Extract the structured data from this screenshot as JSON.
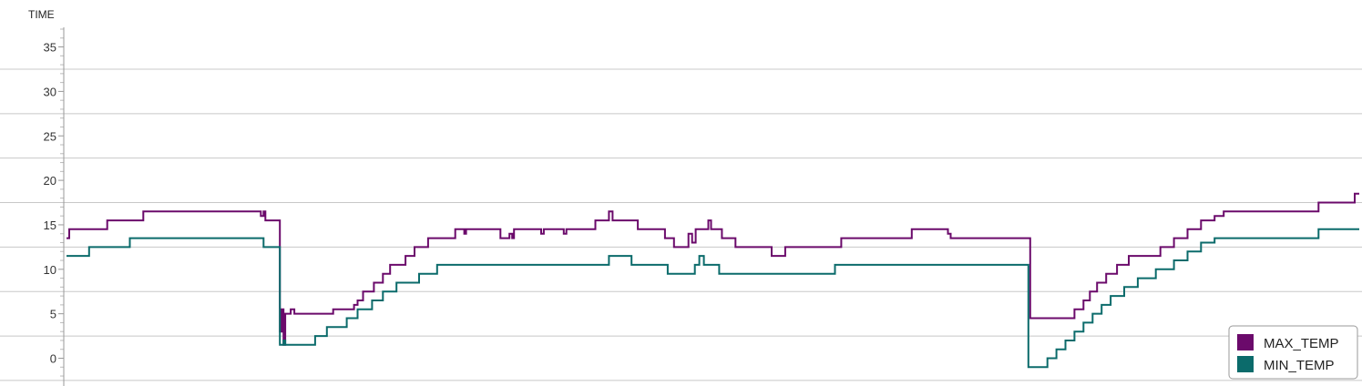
{
  "chart_data": {
    "type": "line",
    "step": true,
    "ylabel": "TIME",
    "ylim": [
      -2,
      37
    ],
    "yticks": [
      0,
      5,
      10,
      15,
      20,
      25,
      30,
      35
    ],
    "grid": true,
    "legend_position": "bottom-right",
    "x_domain": [
      0,
      1430
    ],
    "series": [
      {
        "name": "MAX_TEMP",
        "color": "#6b0a6b",
        "points": [
          [
            0,
            13.5
          ],
          [
            3,
            14.5
          ],
          [
            45,
            15.5
          ],
          [
            85,
            16.5
          ],
          [
            215,
            16
          ],
          [
            218,
            16.5
          ],
          [
            220,
            15.5
          ],
          [
            233,
            15.5
          ],
          [
            236,
            3
          ],
          [
            238,
            5.5
          ],
          [
            240,
            1.5
          ],
          [
            242,
            5
          ],
          [
            248,
            5.5
          ],
          [
            252,
            5
          ],
          [
            295,
            5.5
          ],
          [
            318,
            6
          ],
          [
            322,
            6.5
          ],
          [
            328,
            7.5
          ],
          [
            340,
            8.5
          ],
          [
            350,
            9.5
          ],
          [
            358,
            10.5
          ],
          [
            375,
            11.5
          ],
          [
            385,
            12.5
          ],
          [
            400,
            13.5
          ],
          [
            430,
            14.5
          ],
          [
            440,
            14
          ],
          [
            442,
            14.5
          ],
          [
            480,
            13.5
          ],
          [
            490,
            14
          ],
          [
            493,
            13.5
          ],
          [
            495,
            14.5
          ],
          [
            525,
            14
          ],
          [
            528,
            14.5
          ],
          [
            550,
            14
          ],
          [
            553,
            14.5
          ],
          [
            585,
            15.5
          ],
          [
            600,
            16.5
          ],
          [
            604,
            15.5
          ],
          [
            632,
            14.5
          ],
          [
            662,
            13.5
          ],
          [
            672,
            12.5
          ],
          [
            688,
            14
          ],
          [
            692,
            13
          ],
          [
            696,
            14.5
          ],
          [
            710,
            15.5
          ],
          [
            713,
            14.5
          ],
          [
            725,
            13.5
          ],
          [
            740,
            12.5
          ],
          [
            780,
            11.5
          ],
          [
            795,
            12.5
          ],
          [
            857,
            13.5
          ],
          [
            935,
            14.5
          ],
          [
            975,
            14
          ],
          [
            978,
            13.5
          ],
          [
            1064,
            13.5
          ],
          [
            1066,
            4.5
          ],
          [
            1115,
            5.5
          ],
          [
            1125,
            6.5
          ],
          [
            1132,
            7.5
          ],
          [
            1140,
            8.5
          ],
          [
            1150,
            9.5
          ],
          [
            1162,
            10.5
          ],
          [
            1175,
            11.5
          ],
          [
            1210,
            12.5
          ],
          [
            1225,
            13.5
          ],
          [
            1240,
            14.5
          ],
          [
            1255,
            15.5
          ],
          [
            1270,
            16
          ],
          [
            1280,
            16.5
          ],
          [
            1285,
            16.5
          ],
          [
            1300,
            16.5
          ],
          [
            1330,
            16.5
          ],
          [
            1340,
            16.5
          ],
          [
            1385,
            17.5
          ],
          [
            1415,
            17.5
          ],
          [
            1425,
            18.5
          ],
          [
            1430,
            18.5
          ]
        ]
      },
      {
        "name": "MIN_TEMP",
        "color": "#0b6b6b",
        "points": [
          [
            0,
            11.5
          ],
          [
            25,
            12.5
          ],
          [
            70,
            13.5
          ],
          [
            218,
            12.5
          ],
          [
            233,
            12.5
          ],
          [
            236,
            1.5
          ],
          [
            240,
            2
          ],
          [
            242,
            1.5
          ],
          [
            275,
            2.5
          ],
          [
            288,
            3.5
          ],
          [
            310,
            4.5
          ],
          [
            322,
            5.5
          ],
          [
            338,
            6.5
          ],
          [
            350,
            7.5
          ],
          [
            365,
            8.5
          ],
          [
            390,
            9.5
          ],
          [
            410,
            10.5
          ],
          [
            460,
            10.5
          ],
          [
            540,
            10.5
          ],
          [
            600,
            11.5
          ],
          [
            625,
            10.5
          ],
          [
            665,
            9.5
          ],
          [
            695,
            10.5
          ],
          [
            700,
            11.5
          ],
          [
            705,
            10.5
          ],
          [
            722,
            9.5
          ],
          [
            850,
            10.5
          ],
          [
            1062,
            10.5
          ],
          [
            1064,
            -1
          ],
          [
            1085,
            0
          ],
          [
            1095,
            1
          ],
          [
            1105,
            2
          ],
          [
            1115,
            3
          ],
          [
            1125,
            4
          ],
          [
            1135,
            5
          ],
          [
            1145,
            6
          ],
          [
            1155,
            7
          ],
          [
            1170,
            8
          ],
          [
            1185,
            9
          ],
          [
            1205,
            10
          ],
          [
            1225,
            11
          ],
          [
            1240,
            12
          ],
          [
            1255,
            13
          ],
          [
            1270,
            13.5
          ],
          [
            1290,
            13.5
          ],
          [
            1300,
            13.5
          ],
          [
            1325,
            13.5
          ],
          [
            1385,
            14.5
          ],
          [
            1430,
            14.5
          ]
        ]
      }
    ]
  }
}
